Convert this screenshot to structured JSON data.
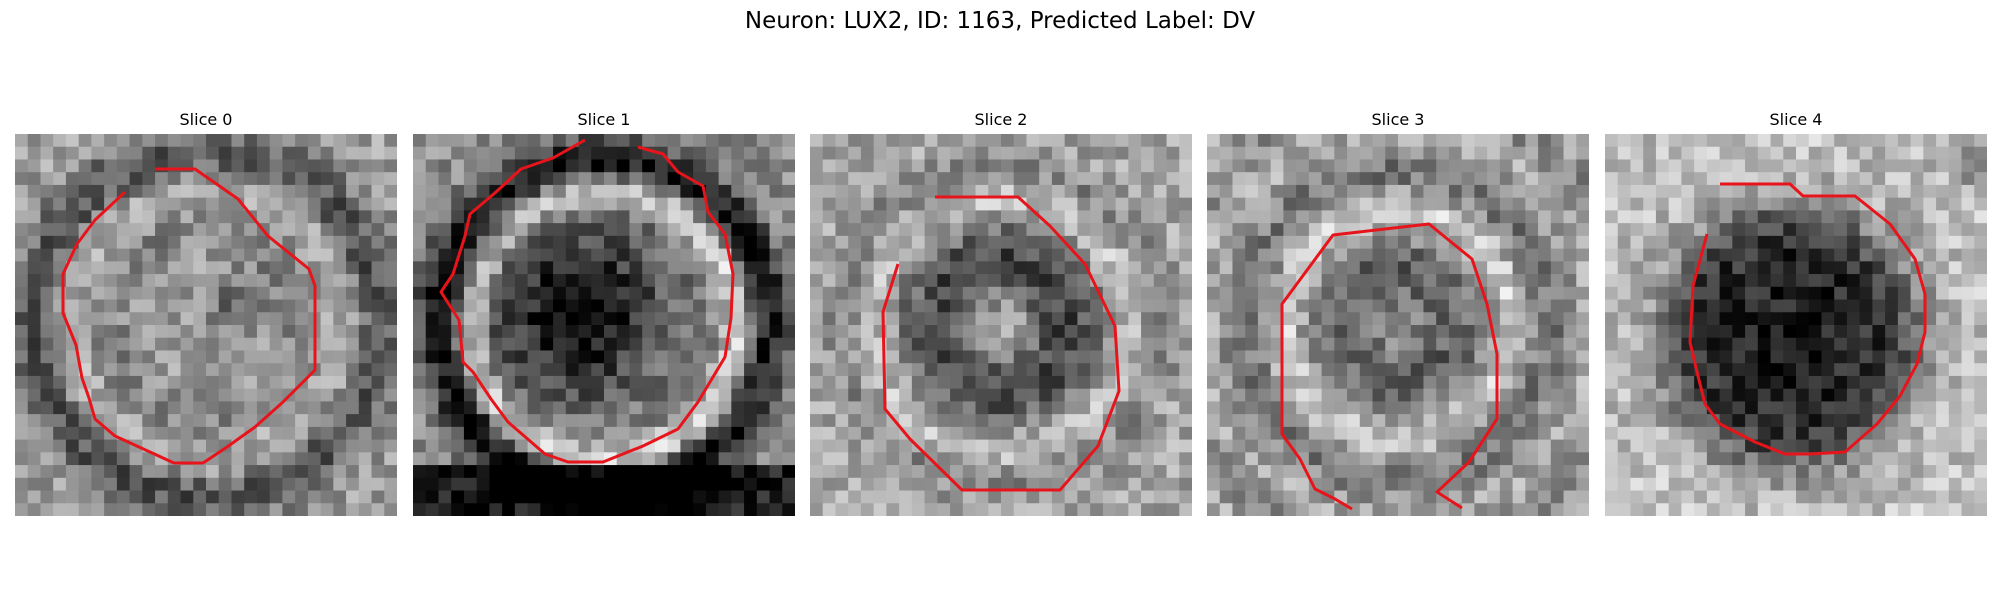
{
  "figure": {
    "title": "Neuron: LUX2, ID: 1163, Predicted Label: DV"
  },
  "colors": {
    "contour": "#e8141b"
  },
  "panels": [
    {
      "title": "Slice 0"
    },
    {
      "title": "Slice 1"
    },
    {
      "title": "Slice 2"
    },
    {
      "title": "Slice 3"
    },
    {
      "title": "Slice 4"
    }
  ]
}
